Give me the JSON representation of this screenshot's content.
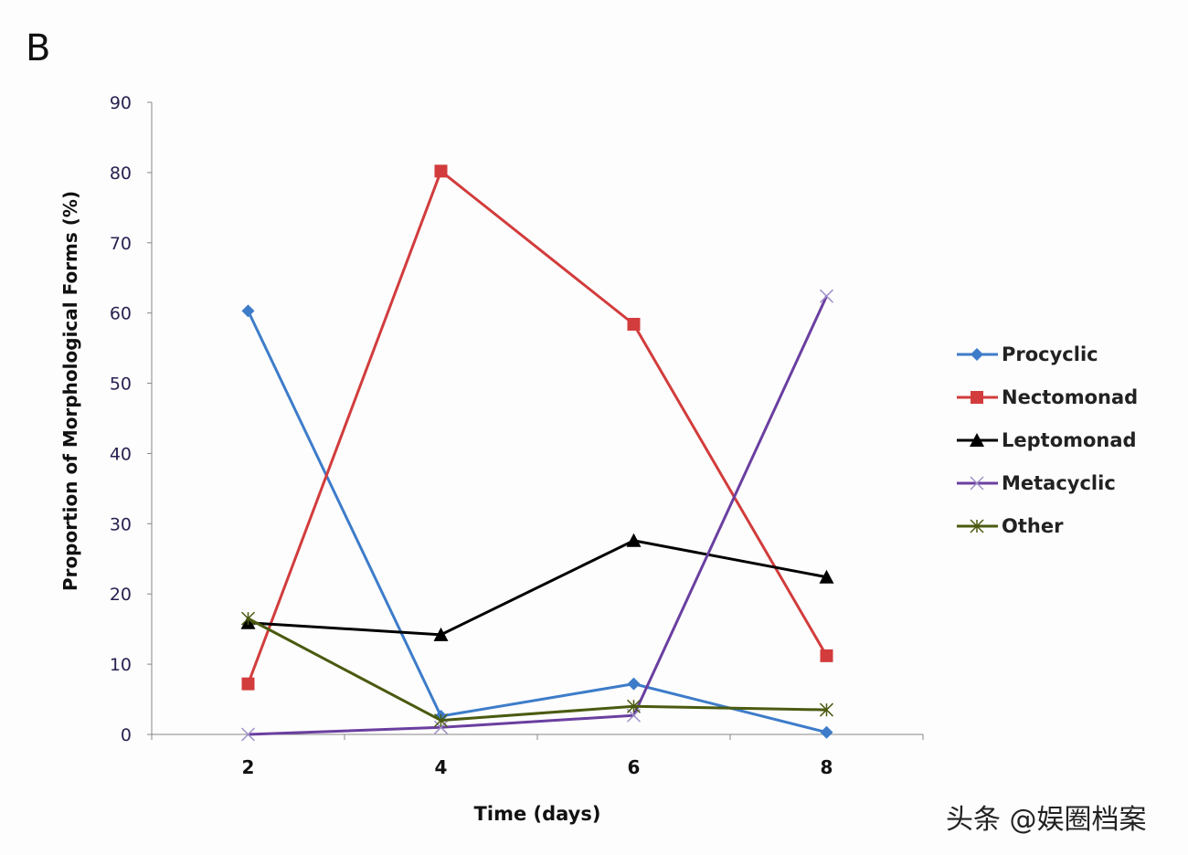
{
  "panel_label": "B",
  "watermark": "头条 @娱圈档案",
  "chart_data": {
    "type": "line",
    "title": "",
    "xlabel": "Time (days)",
    "ylabel": "Proportion of Morphological Forms (%)",
    "categories": [
      "2",
      "4",
      "6",
      "8"
    ],
    "ylim": [
      0,
      90
    ],
    "yticks": [
      0,
      10,
      20,
      30,
      40,
      50,
      60,
      70,
      80,
      90
    ],
    "grid": false,
    "legend_position": "right",
    "series": [
      {
        "name": "Procyclic",
        "color": "#3d7cc9",
        "marker": "diamond",
        "values": [
          60.3,
          2.6,
          7.2,
          0.3
        ]
      },
      {
        "name": "Nectomonad",
        "color": "#d23c3c",
        "marker": "square",
        "values": [
          7.2,
          80.2,
          58.4,
          11.2
        ]
      },
      {
        "name": "Leptomonad",
        "color": "#000000",
        "marker": "triangle",
        "values": [
          15.9,
          14.2,
          27.6,
          22.4
        ]
      },
      {
        "name": "Metacyclic",
        "color": "#6a3fa0",
        "marker": "x",
        "values": [
          0,
          1.0,
          2.7,
          62.4
        ]
      },
      {
        "name": "Other",
        "color": "#4a5a10",
        "marker": "star",
        "values": [
          16.5,
          2.0,
          4.0,
          3.5
        ]
      }
    ]
  }
}
